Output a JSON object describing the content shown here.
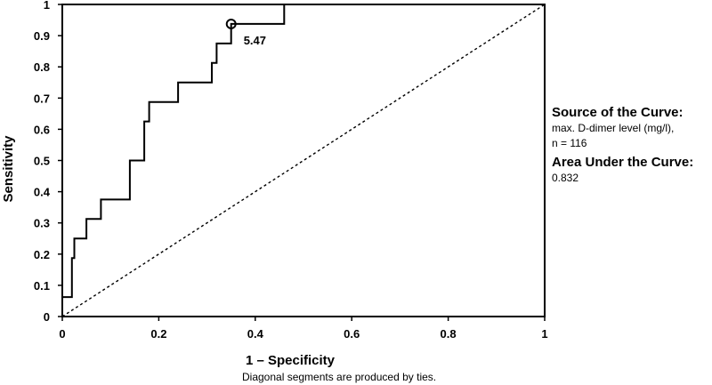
{
  "chart_data": {
    "type": "line",
    "title": "",
    "xlabel": "1 – Specificity",
    "ylabel": "Sensitivity",
    "xlim": [
      0,
      1
    ],
    "ylim": [
      0,
      1
    ],
    "x_ticks": [
      "0",
      "0.2",
      "0.4",
      "0.6",
      "0.8",
      "1"
    ],
    "y_ticks": [
      "0",
      "0.1",
      "0.2",
      "0.3",
      "0.4",
      "0.5",
      "0.6",
      "0.7",
      "0.8",
      "0.9",
      "1"
    ],
    "grid": false,
    "series": [
      {
        "style": "solid",
        "x": [
          0,
          0,
          0.02,
          0.02,
          0.025,
          0.025,
          0.05,
          0.05,
          0.08,
          0.08,
          0.14,
          0.14,
          0.17,
          0.17,
          0.18,
          0.18,
          0.24,
          0.24,
          0.31,
          0.31,
          0.32,
          0.32,
          0.35,
          0.35,
          0.46,
          0.46,
          1
        ],
        "y": [
          0,
          0.0625,
          0.0625,
          0.1875,
          0.1875,
          0.25,
          0.25,
          0.3125,
          0.3125,
          0.375,
          0.375,
          0.5,
          0.5,
          0.625,
          0.625,
          0.6875,
          0.6875,
          0.75,
          0.75,
          0.8125,
          0.8125,
          0.875,
          0.875,
          0.9375,
          0.9375,
          1,
          1
        ]
      },
      {
        "style": "dashed",
        "x": [
          0,
          1
        ],
        "y": [
          0,
          1
        ]
      }
    ],
    "marker": {
      "x": 0.35,
      "y": 0.9375,
      "label": "5.47"
    },
    "note": "Diagonal segments are produced by ties."
  },
  "side_panel": {
    "source_heading": "Source of the Curve:",
    "source_line1": "max. D-dimer level (mg/l),",
    "source_line2": "n = 116",
    "auc_heading": "Area Under the Curve:",
    "auc_value": "0.832"
  }
}
